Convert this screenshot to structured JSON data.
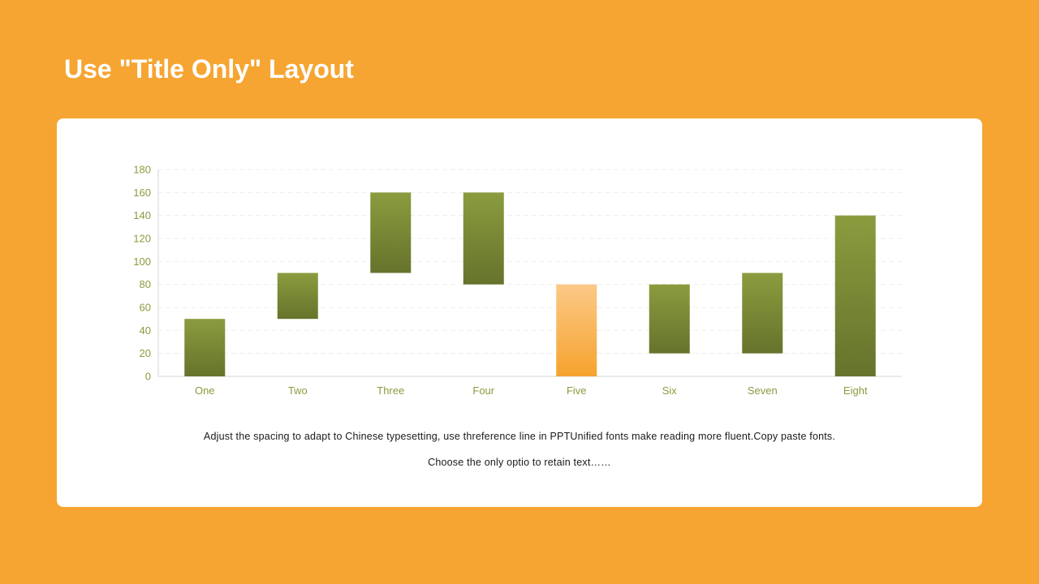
{
  "slide": {
    "title": "Use \"Title Only\" Layout",
    "caption": "Adjust the spacing to adapt to Chinese typesetting, use threference line in PPTUnified fonts make reading more fluent.Copy paste fonts. Choose the only optio to retain text……"
  },
  "colors": {
    "background": "#F6A532",
    "axis_text": "#8A9B3F",
    "bar_green_light": "#8A9C3E",
    "bar_green_dark": "#66732C",
    "bar_orange_light": "#FBC987",
    "bar_orange_dark": "#F6A32E"
  },
  "chart_data": {
    "type": "bar",
    "subtype": "floating",
    "title": "",
    "xlabel": "",
    "ylabel": "",
    "ylim": [
      0,
      180
    ],
    "yticks": [
      0,
      20,
      40,
      60,
      80,
      100,
      120,
      140,
      160,
      180
    ],
    "grid": true,
    "legend": "none",
    "categories": [
      "One",
      "Two",
      "Three",
      "Four",
      "Five",
      "Six",
      "Seven",
      "Eight"
    ],
    "ranges": [
      {
        "low": 0,
        "high": 50
      },
      {
        "low": 50,
        "high": 90
      },
      {
        "low": 90,
        "high": 160
      },
      {
        "low": 80,
        "high": 160
      },
      {
        "low": 0,
        "high": 80
      },
      {
        "low": 20,
        "high": 80
      },
      {
        "low": 20,
        "high": 90
      },
      {
        "low": 0,
        "high": 140
      }
    ],
    "highlight_category": "Five"
  }
}
